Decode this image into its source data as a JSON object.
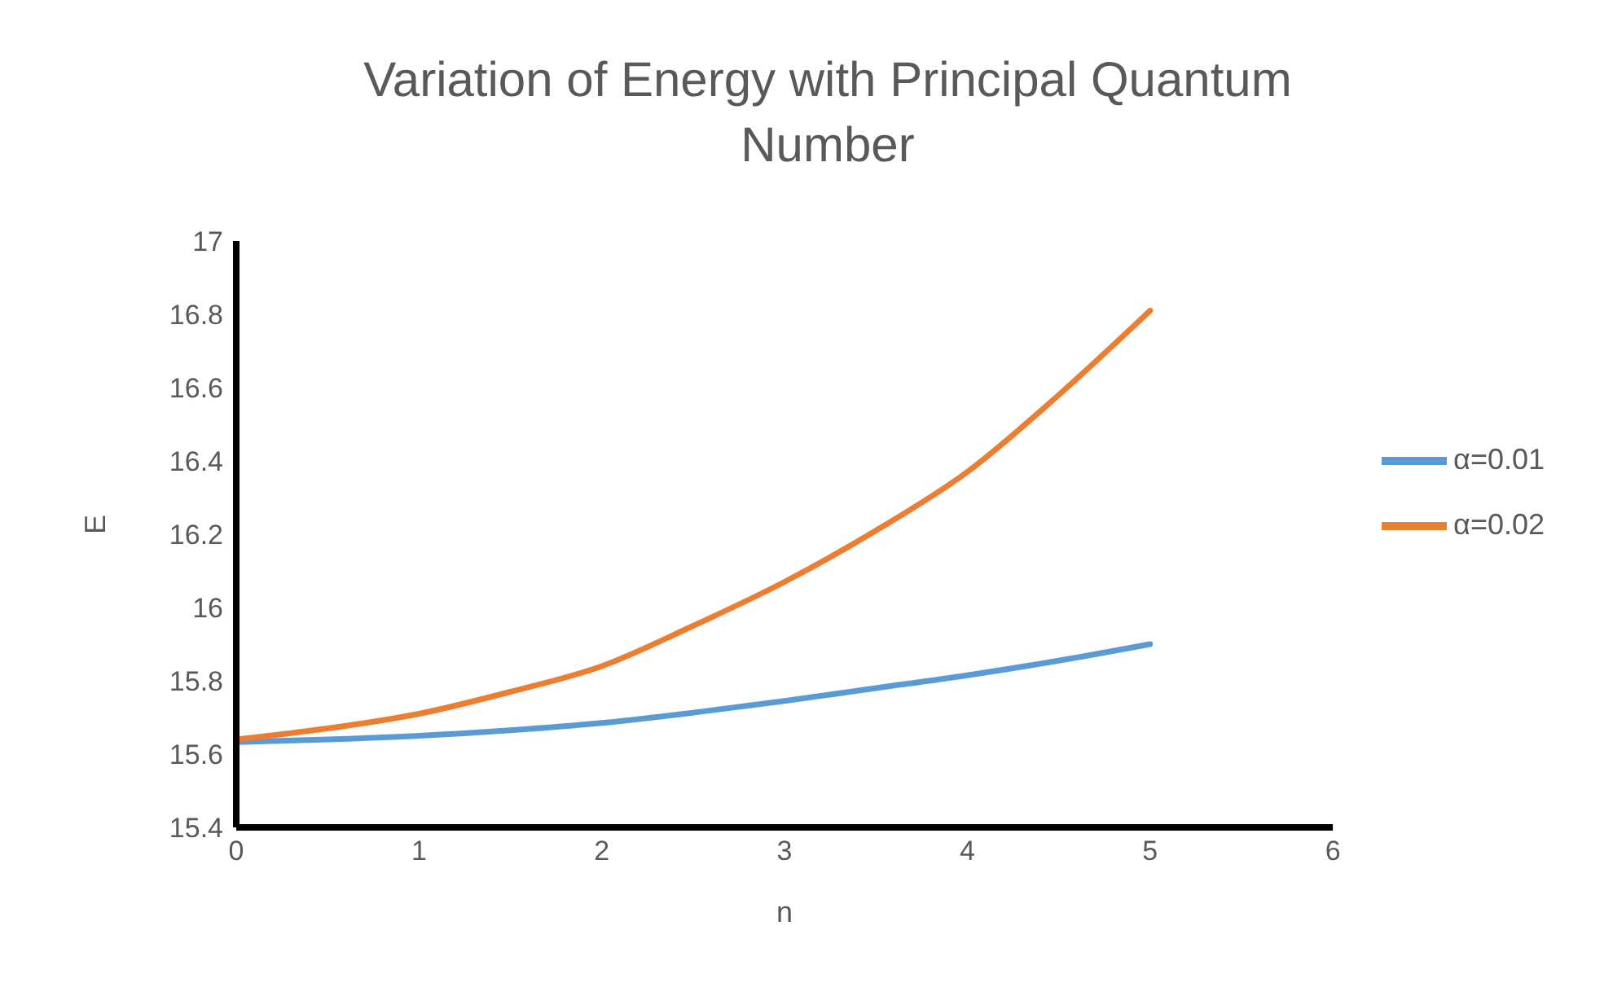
{
  "chart_data": {
    "type": "line",
    "title": "Variation of Energy with Principal Quantum Number",
    "xlabel": "n",
    "ylabel": "E",
    "x": [
      0,
      0.5,
      1,
      1.5,
      2,
      2.5,
      3,
      3.5,
      4,
      4.5,
      5
    ],
    "series": [
      {
        "name": "α=0.01",
        "color": "#5b9bd5",
        "values": [
          15.633,
          15.64,
          15.65,
          15.665,
          15.685,
          15.713,
          15.745,
          15.78,
          15.815,
          15.855,
          15.9
        ]
      },
      {
        "name": "α=0.02",
        "color": "#ed7d31",
        "values": [
          15.64,
          15.67,
          15.71,
          15.77,
          15.84,
          15.95,
          16.07,
          16.21,
          16.37,
          16.58,
          16.81
        ]
      }
    ],
    "xlim": [
      0,
      6
    ],
    "xticks": [
      0,
      1,
      2,
      3,
      4,
      5,
      6
    ],
    "ylim": [
      15.4,
      17
    ],
    "yticks": [
      15.4,
      15.6,
      15.8,
      16,
      16.2,
      16.4,
      16.6,
      16.8,
      17
    ],
    "grid": false,
    "legend": "right",
    "marker": "none",
    "line_style": "solid"
  }
}
